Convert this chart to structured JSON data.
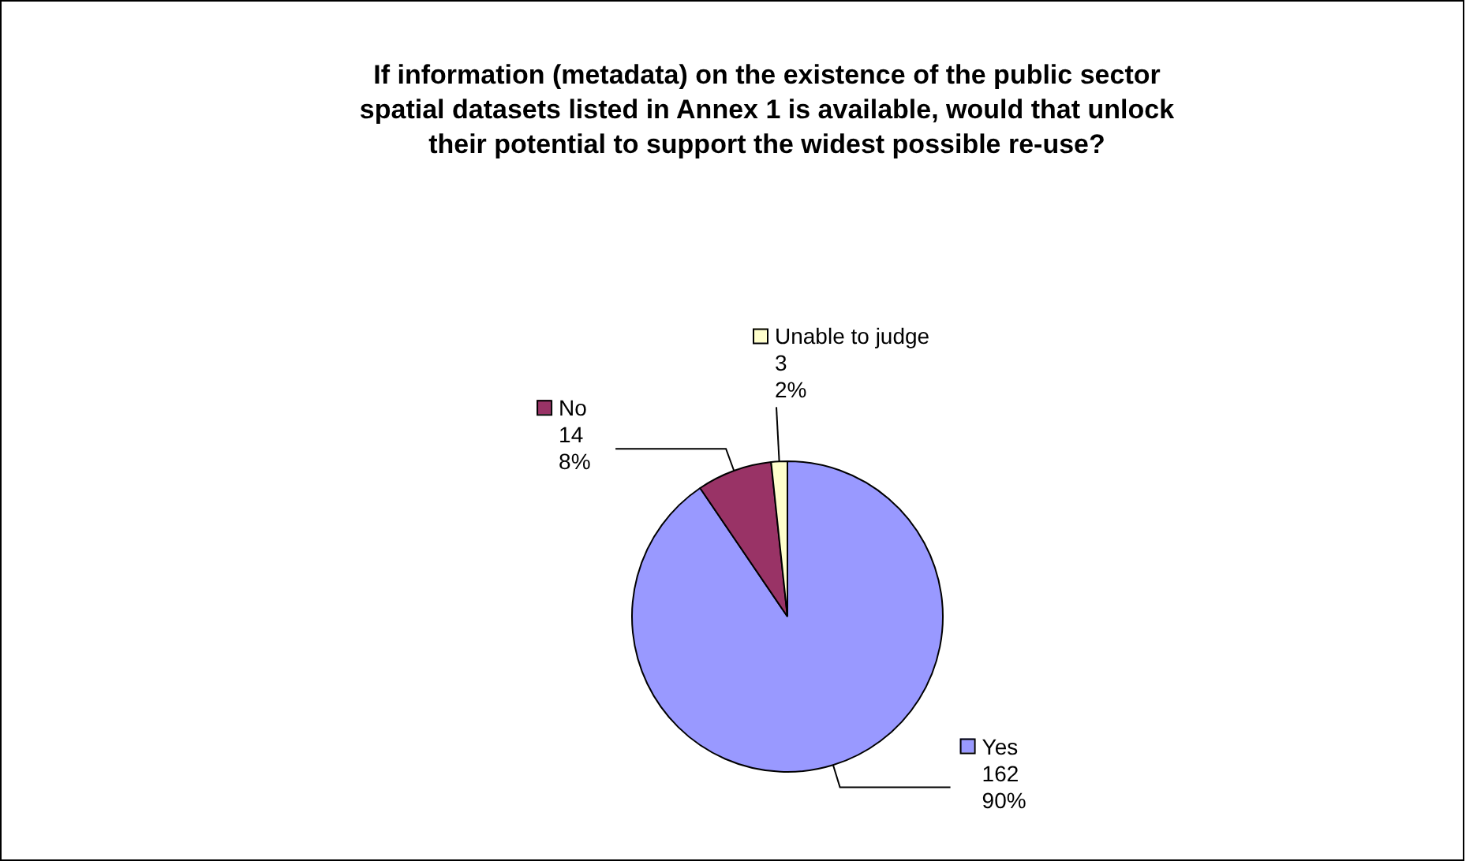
{
  "chart_data": {
    "type": "pie",
    "title": "If information (metadata) on the existence of the public sector spatial datasets listed in Annex 1 is available, would that unlock their potential to support the widest possible re-use?",
    "categories": [
      "Yes",
      "No",
      "Unable to judge"
    ],
    "values": [
      162,
      14,
      3
    ],
    "colors": [
      "#9999ff",
      "#993366",
      "#ffffcc"
    ],
    "value_labels": [
      "162\n90%",
      "14\n8%",
      "3\n2%"
    ],
    "legend": "right"
  }
}
